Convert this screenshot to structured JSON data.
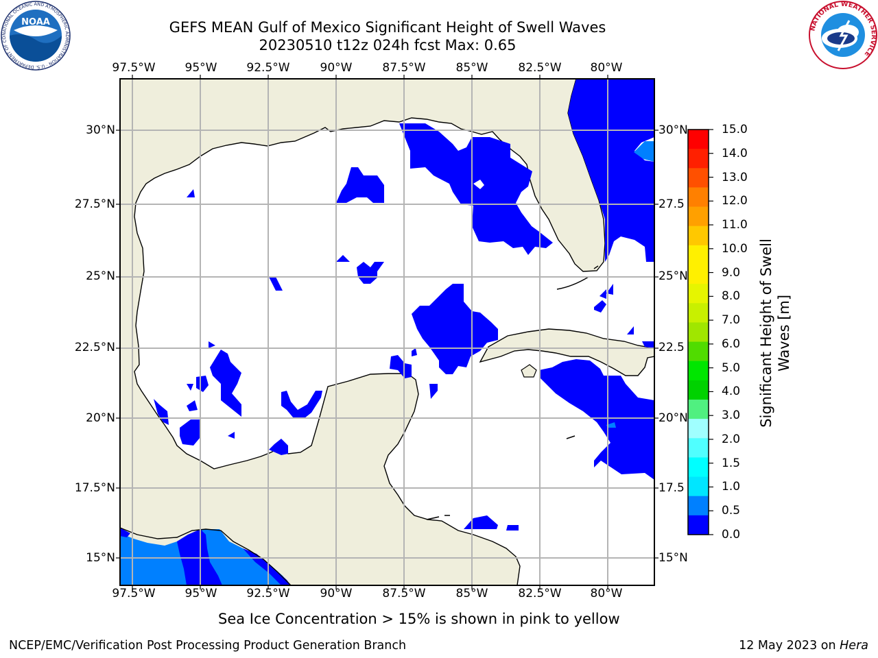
{
  "title": {
    "line1": "GEFS MEAN Gulf of Mexico Significant Height of Swell Waves",
    "line2": "20230510 t12z 024h fcst   Max: 0.65"
  },
  "map": {
    "lon_labels": [
      "97.5°W",
      "95°W",
      "92.5°W",
      "90°W",
      "87.5°W",
      "85°W",
      "82.5°W",
      "80°W"
    ],
    "lat_labels_left": [
      "30°N",
      "27.5°N",
      "25°N",
      "22.5°N",
      "20°N",
      "17.5°N",
      "15°N"
    ],
    "lat_labels_right": [
      "30°N",
      "27.5",
      "25°N",
      "22.5",
      "20°N",
      "17.5",
      "15°N"
    ],
    "colors": {
      "land": "#efeedc",
      "ocean": "#ffffff",
      "grid": "#b4b4b4",
      "coast": "#000000"
    }
  },
  "colorbar": {
    "label_line1": "Significant Height of Swell",
    "label_line2": "Waves [m]",
    "ticks": [
      "15.0",
      "14.0",
      "13.0",
      "12.0",
      "11.0",
      "10.0",
      "9.0",
      "8.0",
      "7.0",
      "6.0",
      "5.0",
      "4.0",
      "3.0",
      "2.0",
      "1.5",
      "1.0",
      "0.5",
      "0.0"
    ],
    "colors_top_to_bottom": [
      "#ff0000",
      "#ff2000",
      "#ff5000",
      "#ff8000",
      "#ffa000",
      "#ffc800",
      "#fff000",
      "#fff000",
      "#e6f500",
      "#c8f000",
      "#a0e600",
      "#50dc00",
      "#00e600",
      "#00d200",
      "#50f080",
      "#a0ffff",
      "#50ffff",
      "#00ffff",
      "#00e6ff",
      "#0080ff",
      "#0000ff"
    ]
  },
  "note": "Sea Ice Concentration > 15% is shown in pink to yellow",
  "footer": {
    "left": "NCEP/EMC/Verification Post Processing Product Generation Branch",
    "date": "12 May 2023 on ",
    "host": "Hera"
  },
  "logos": {
    "noaa_text": "NOAA",
    "noaa_ring": "NATIONAL OCEANIC AND ATMOSPHERIC ADMINISTRATION · U.S. DEPARTMENT OF COMMERCE",
    "nws_ring": "NATIONAL WEATHER SERVICE"
  }
}
